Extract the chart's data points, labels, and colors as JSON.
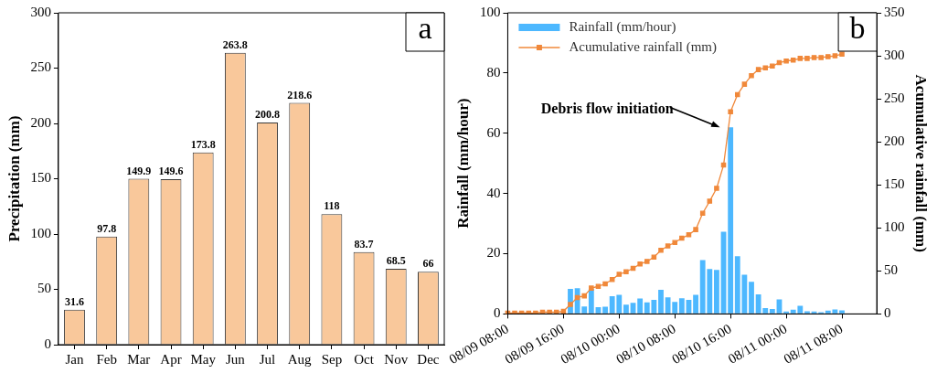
{
  "chart_data": [
    {
      "type": "bar",
      "title": "a",
      "ylabel": "Precipitation (mm)",
      "categories": [
        "Jan",
        "Feb",
        "Mar",
        "Apr",
        "May",
        "Jun",
        "Jul",
        "Aug",
        "Sep",
        "Oct",
        "Nov",
        "Dec"
      ],
      "values": [
        31.6,
        97.8,
        149.9,
        149.6,
        173.8,
        263.8,
        200.8,
        218.6,
        118,
        83.7,
        68.5,
        66
      ],
      "color": "#f9c89b",
      "ylim": [
        0,
        300
      ],
      "yticks": [
        0,
        50,
        100,
        150,
        200,
        250,
        300
      ],
      "data_labels": true
    },
    {
      "type": "bar",
      "title": "b",
      "ylabel": "Rainfall (mm/hour)",
      "y2label": "Acumulative rainfall (mm)",
      "legend": "top left",
      "marker": "square",
      "categories": [
        "08/09 08:00",
        null,
        null,
        null,
        null,
        null,
        null,
        null,
        "08/09 16:00",
        null,
        null,
        null,
        null,
        null,
        null,
        null,
        "08/10 00:00",
        null,
        null,
        null,
        null,
        null,
        null,
        null,
        "08/10 08:00",
        null,
        null,
        null,
        null,
        null,
        null,
        null,
        "08/10 16:00",
        null,
        null,
        null,
        null,
        null,
        null,
        null,
        "08/11 00:00",
        null,
        null,
        null,
        null,
        null,
        null,
        null,
        "08/11 08:00",
        null,
        null,
        null,
        null,
        null
      ],
      "ylim": [
        0,
        100
      ],
      "yticks": [
        0,
        20,
        40,
        60,
        80,
        100
      ],
      "y2lim": [
        0,
        350
      ],
      "y2ticks": [
        0,
        50,
        100,
        150,
        200,
        250,
        300,
        350
      ],
      "annotations": [
        "Debris flow initiation"
      ],
      "series": [
        {
          "name": "Rainfall (mm/hour)",
          "type": "bar",
          "color": "#4db8ff",
          "values": [
            null,
            null,
            null,
            null,
            null,
            null,
            null,
            null,
            null,
            8.3,
            8.5,
            2.5,
            8.3,
            2.2,
            2.4,
            5.9,
            6.3,
            3.1,
            3.7,
            5.1,
            3.8,
            4.7,
            8.0,
            5.5,
            4.0,
            5.2,
            4.7,
            6.3,
            17.9,
            14.9,
            14.6,
            27.3,
            62,
            19.2,
            13.0,
            10.7,
            6.5,
            1.9,
            1.6,
            4.8,
            0.8,
            1.4,
            2.7,
            0.9,
            0.8,
            0.6,
            1.1,
            1.5,
            1.2,
            null,
            null,
            null,
            null,
            null
          ]
        },
        {
          "name": "Acumulative rainfall (mm)",
          "type": "line",
          "axis": "y2",
          "color": "#f0883a",
          "values": [
            1,
            1,
            1,
            1,
            1,
            2,
            2,
            2,
            3,
            11,
            19,
            21,
            30,
            32,
            35,
            40,
            46,
            49,
            53,
            58,
            61,
            66,
            74,
            79,
            83,
            88,
            92,
            98,
            117,
            131,
            146,
            173,
            235,
            255,
            267,
            277,
            284,
            286,
            288,
            292,
            294,
            295,
            297,
            297,
            298,
            298,
            299,
            300,
            302,
            null,
            null,
            null,
            null,
            null
          ]
        }
      ]
    }
  ]
}
